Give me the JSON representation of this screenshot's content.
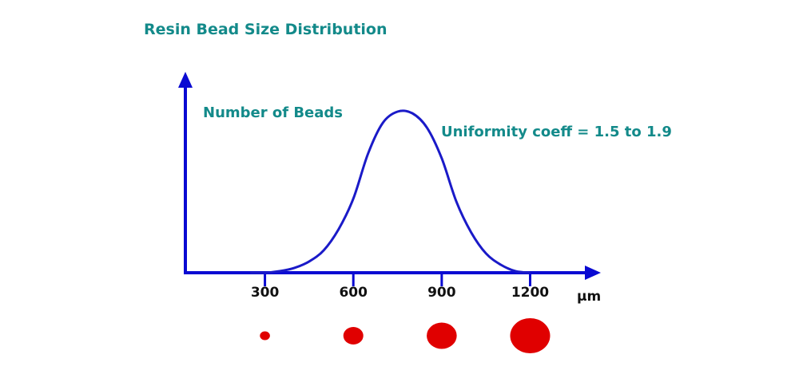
{
  "chart_data": {
    "type": "line",
    "title": "Resin Bead Size Distribution",
    "ylabel": "Number of Beads",
    "xlabel": "µm",
    "annotation": "Uniformity coeff  = 1.5 to 1.9",
    "x_ticks": [
      300,
      600,
      900,
      1200
    ],
    "x_tick_labels": [
      "300",
      "600",
      "900",
      "1200"
    ],
    "xlim": [
      30,
      1440
    ],
    "ylim": [
      0,
      1
    ],
    "series": [
      {
        "name": "Number of Beads",
        "x": [
          250,
          300,
          350,
          400,
          450,
          500,
          550,
          600,
          650,
          700,
          750,
          800,
          850,
          900,
          950,
          1000,
          1050,
          1100,
          1150,
          1200
        ],
        "y": [
          0.0,
          0.0,
          0.01,
          0.03,
          0.07,
          0.14,
          0.27,
          0.46,
          0.74,
          0.93,
          1.0,
          0.99,
          0.9,
          0.71,
          0.44,
          0.25,
          0.12,
          0.05,
          0.01,
          0.0
        ]
      }
    ],
    "bead_sizes": [
      300,
      600,
      900,
      1200
    ],
    "colors": {
      "axis": "#0a0ad2",
      "curve": "#1a1ac8",
      "text": "#138a8a",
      "bead": "#e00000"
    }
  }
}
